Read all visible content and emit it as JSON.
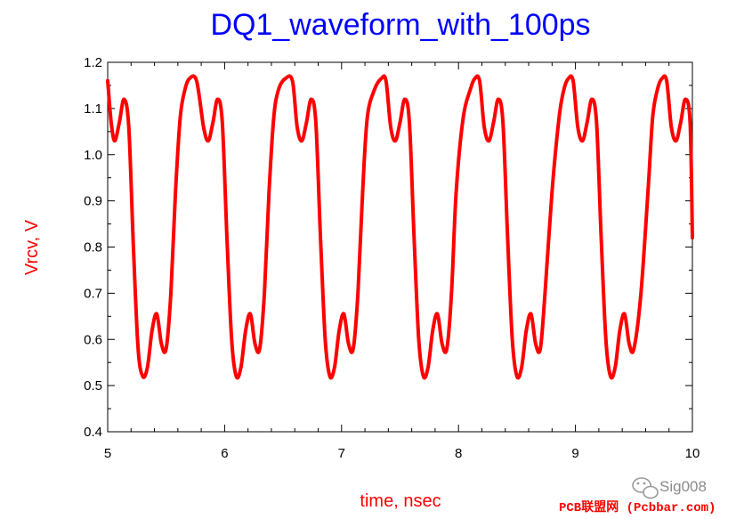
{
  "chart_data": {
    "type": "line",
    "title": "DQ1_waveform_with_100ps",
    "xlabel": "time, nsec",
    "ylabel": "Vrcv, V",
    "xlim": [
      5,
      10
    ],
    "ylim": [
      0.4,
      1.2
    ],
    "xticks": [
      5,
      6,
      7,
      8,
      9,
      10
    ],
    "yticks": [
      0.4,
      0.5,
      0.6,
      0.7,
      0.8,
      0.9,
      1.0,
      1.1,
      1.2
    ],
    "xtick_labels": [
      "5",
      "6",
      "7",
      "8",
      "9",
      "10"
    ],
    "ytick_labels": [
      "0.4",
      "0.5",
      "0.6",
      "0.7",
      "0.8",
      "0.9",
      "1.0",
      "1.1",
      "1.2"
    ],
    "grid": false,
    "series": [
      {
        "color": "#ff0000",
        "x": [
          5.0,
          5.03,
          5.06,
          5.1,
          5.14,
          5.18,
          5.22,
          5.26,
          5.3,
          5.34,
          5.38,
          5.42,
          5.46,
          5.5,
          5.54,
          5.58,
          5.62,
          5.66,
          5.7,
          5.76,
          5.82,
          5.86,
          5.9,
          5.94,
          5.98,
          6.02,
          6.06,
          6.1,
          6.14,
          6.18,
          6.22,
          6.26,
          6.3,
          6.34,
          6.38,
          6.42,
          6.46,
          6.52,
          6.58,
          6.62,
          6.66,
          6.7,
          6.74,
          6.78,
          6.82,
          6.86,
          6.9,
          6.94,
          6.98,
          7.02,
          7.06,
          7.1,
          7.14,
          7.18,
          7.22,
          7.28,
          7.34,
          7.38,
          7.42,
          7.46,
          7.5,
          7.54,
          7.58,
          7.62,
          7.66,
          7.7,
          7.74,
          7.78,
          7.82,
          7.86,
          7.9,
          7.94,
          7.98,
          8.04,
          8.1,
          8.14,
          8.18,
          8.22,
          8.26,
          8.3,
          8.34,
          8.38,
          8.42,
          8.46,
          8.5,
          8.54,
          8.58,
          8.62,
          8.66,
          8.7,
          8.74,
          8.8,
          8.86,
          8.9,
          8.94,
          8.98,
          9.02,
          9.06,
          9.1,
          9.14,
          9.18,
          9.22,
          9.26,
          9.3,
          9.34,
          9.38,
          9.42,
          9.46,
          9.5,
          9.56,
          9.62,
          9.66,
          9.7,
          9.74,
          9.78,
          9.82,
          9.86,
          9.9,
          9.94,
          9.98,
          10.0
        ],
        "y": [
          1.16,
          1.07,
          1.03,
          1.07,
          1.12,
          1.06,
          0.8,
          0.58,
          0.52,
          0.54,
          0.62,
          0.655,
          0.59,
          0.58,
          0.7,
          0.92,
          1.08,
          1.14,
          1.165,
          1.16,
          1.06,
          1.03,
          1.07,
          1.12,
          1.07,
          0.82,
          0.6,
          0.52,
          0.54,
          0.62,
          0.655,
          0.59,
          0.58,
          0.7,
          0.92,
          1.08,
          1.14,
          1.165,
          1.16,
          1.06,
          1.03,
          1.07,
          1.12,
          1.07,
          0.82,
          0.6,
          0.52,
          0.54,
          0.62,
          0.655,
          0.59,
          0.58,
          0.7,
          0.92,
          1.08,
          1.14,
          1.165,
          1.16,
          1.06,
          1.03,
          1.07,
          1.12,
          1.07,
          0.82,
          0.6,
          0.52,
          0.54,
          0.62,
          0.655,
          0.59,
          0.58,
          0.7,
          0.92,
          1.08,
          1.14,
          1.165,
          1.16,
          1.06,
          1.03,
          1.07,
          1.12,
          1.07,
          0.82,
          0.6,
          0.52,
          0.54,
          0.62,
          0.655,
          0.59,
          0.58,
          0.7,
          0.92,
          1.08,
          1.14,
          1.165,
          1.16,
          1.06,
          1.03,
          1.07,
          1.12,
          1.07,
          0.82,
          0.6,
          0.52,
          0.54,
          0.62,
          0.655,
          0.59,
          0.58,
          0.7,
          0.92,
          1.08,
          1.14,
          1.165,
          1.16,
          1.06,
          1.03,
          1.07,
          1.12,
          1.07,
          0.82
        ]
      }
    ],
    "title_color": "#0000ff",
    "label_color": "#ff0000"
  },
  "watermark": {
    "brand": "Sig008",
    "site": "PCB联盟网 (Pcbbar.com)",
    "icon": "wechat-icon",
    "site_color": "#ff0000"
  }
}
